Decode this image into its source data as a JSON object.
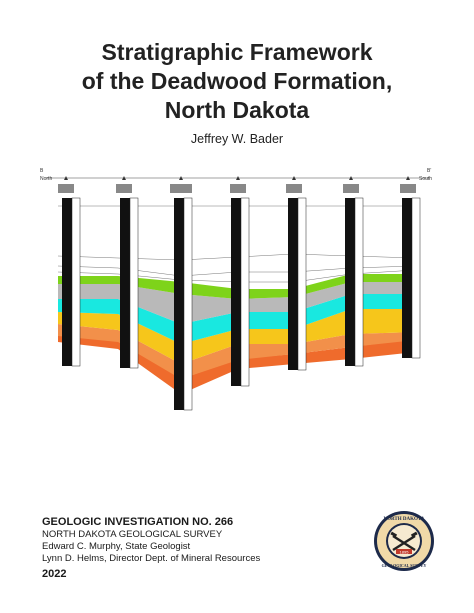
{
  "title": {
    "line1": "Stratigraphic Framework",
    "line2": "of the Deadwood Formation,",
    "line3": "North Dakota"
  },
  "author": "Jeffrey W. Bader",
  "cross_section": {
    "label_left": "B",
    "label_left_dir": "North",
    "label_right": "B'",
    "label_right_dir": "South",
    "colors": {
      "green": "#7ed31a",
      "gray": "#b9b9b9",
      "cyan": "#19e8e0",
      "yellow": "#f6c61b",
      "orange": "#f2904a",
      "red_orange": "#ef6b2c"
    }
  },
  "footer": {
    "investigation": "GEOLOGIC INVESTIGATION NO. 266",
    "survey": "NORTH DAKOTA GEOLOGICAL SURVEY",
    "geologist": "Edward C. Murphy, State Geologist",
    "director": "Lynn D. Helms, Director Dept. of Mineral Resources",
    "year": "2022"
  },
  "seal": {
    "top_text": "NORTH DAKOTA",
    "bottom_text": "GEOLOGICAL SURVEY",
    "founded": "1895"
  }
}
